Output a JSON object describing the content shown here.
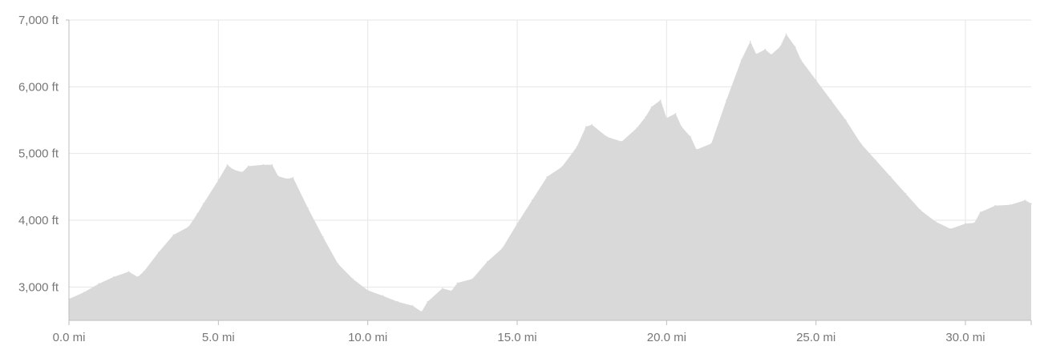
{
  "chart_data": {
    "type": "area",
    "title": "",
    "xlabel": "",
    "ylabel": "",
    "xlim": [
      0,
      32.2
    ],
    "ylim": [
      2500,
      7000
    ],
    "grid": true,
    "x_ticks": [
      {
        "value": 0,
        "label": "0.0 mi"
      },
      {
        "value": 5,
        "label": "5.0 mi"
      },
      {
        "value": 10,
        "label": "10.0 mi"
      },
      {
        "value": 15,
        "label": "15.0 mi"
      },
      {
        "value": 20,
        "label": "20.0 mi"
      },
      {
        "value": 25,
        "label": "25.0 mi"
      },
      {
        "value": 30,
        "label": "30.0 mi"
      }
    ],
    "y_ticks": [
      {
        "value": 3000,
        "label": "3,000 ft"
      },
      {
        "value": 4000,
        "label": "4,000 ft"
      },
      {
        "value": 5000,
        "label": "5,000 ft"
      },
      {
        "value": 6000,
        "label": "6,000 ft"
      },
      {
        "value": 7000,
        "label": "7,000 ft"
      }
    ],
    "colors": {
      "fill": "#d9d9d9",
      "grid": "#e6e6e6",
      "axis": "#bdbdbd",
      "text": "#777777"
    },
    "series": [
      {
        "x": [
          0,
          0.5,
          1,
          1.5,
          2,
          2.3,
          2.5,
          3,
          3.5,
          4,
          4.3,
          4.5,
          5,
          5.3,
          5.5,
          5.8,
          6,
          6.5,
          6.8,
          7,
          7.3,
          7.5,
          8,
          8.5,
          9,
          9.5,
          10,
          10.5,
          11,
          11.5,
          11.8,
          12,
          12.5,
          12.8,
          13,
          13.5,
          14,
          14.5,
          15,
          15.5,
          16,
          16.5,
          17,
          17.3,
          17.5,
          18,
          18.5,
          19,
          19.3,
          19.5,
          19.8,
          20,
          20.3,
          20.5,
          20.8,
          21,
          21.5,
          22,
          22.5,
          22.8,
          23,
          23.3,
          23.5,
          23.8,
          24,
          24.3,
          24.5,
          25,
          25.5,
          26,
          26.5,
          27,
          27.5,
          28,
          28.5,
          29,
          29.5,
          30,
          30.3,
          30.5,
          31,
          31.5,
          32,
          32.2
        ],
        "y": [
          2820,
          2920,
          3050,
          3150,
          3230,
          3150,
          3230,
          3520,
          3780,
          3900,
          4100,
          4250,
          4600,
          4830,
          4760,
          4720,
          4810,
          4830,
          4830,
          4660,
          4620,
          4640,
          4180,
          3750,
          3350,
          3120,
          2950,
          2870,
          2780,
          2720,
          2630,
          2780,
          2980,
          2940,
          3060,
          3120,
          3380,
          3580,
          3950,
          4300,
          4650,
          4800,
          5100,
          5400,
          5430,
          5250,
          5180,
          5380,
          5550,
          5700,
          5800,
          5530,
          5600,
          5400,
          5250,
          5060,
          5150,
          5800,
          6400,
          6680,
          6490,
          6560,
          6480,
          6600,
          6790,
          6600,
          6400,
          6100,
          5800,
          5500,
          5150,
          4900,
          4650,
          4400,
          4150,
          3980,
          3870,
          3950,
          3960,
          4120,
          4220,
          4230,
          4300,
          4250
        ]
      }
    ]
  }
}
